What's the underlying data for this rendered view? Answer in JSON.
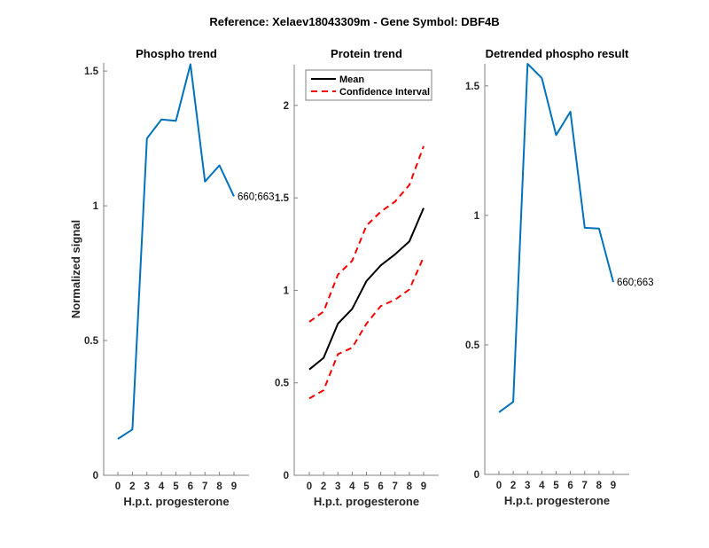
{
  "suptitle": "Reference:  Xelaev18043309m - Gene Symbol:  DBF4B",
  "chart_data": [
    {
      "type": "line",
      "title": "Phospho trend",
      "xlabel": "H.p.t. progesterone",
      "ylabel": "Normalized signal",
      "categories": [
        "0",
        "2",
        "3",
        "4",
        "5",
        "6",
        "7",
        "8",
        "9"
      ],
      "ylim": [
        0,
        1.53
      ],
      "yticks": [
        0,
        0.5,
        1,
        1.5
      ],
      "ytick_labels": [
        "0",
        "0.5",
        "1",
        "1.5"
      ],
      "series": [
        {
          "name": "660;663",
          "color": "#0072BD",
          "style": "solid",
          "values": [
            0.135,
            0.17,
            1.25,
            1.32,
            1.315,
            1.525,
            1.09,
            1.15,
            1.035
          ]
        }
      ],
      "annotation": "660;663",
      "legend": null
    },
    {
      "type": "line",
      "title": "Protein trend",
      "xlabel": "H.p.t. progesterone",
      "ylabel": "",
      "categories": [
        "0",
        "2",
        "3",
        "4",
        "5",
        "6",
        "7",
        "8",
        "9"
      ],
      "ylim": [
        0,
        2.22
      ],
      "yticks": [
        0,
        0.5,
        1,
        1.5,
        2
      ],
      "ytick_labels": [
        "0",
        "0.5",
        "1",
        "1.5",
        "2"
      ],
      "series": [
        {
          "name": "Mean",
          "color": "#000000",
          "style": "solid",
          "values": [
            0.572,
            0.635,
            0.82,
            0.9,
            1.05,
            1.135,
            1.195,
            1.265,
            1.445
          ]
        },
        {
          "name": "Confidence Interval",
          "color": "#FF0000",
          "style": "dashed",
          "values": [
            0.83,
            0.885,
            1.085,
            1.16,
            1.35,
            1.425,
            1.48,
            1.57,
            1.78
          ]
        },
        {
          "name": "Confidence Interval (lower)",
          "color": "#FF0000",
          "style": "dashed",
          "in_legend": false,
          "values": [
            0.415,
            0.46,
            0.655,
            0.69,
            0.82,
            0.915,
            0.95,
            1.005,
            1.18
          ]
        }
      ],
      "legend": {
        "position": "top",
        "entries": [
          "Mean",
          "Confidence Interval"
        ]
      }
    },
    {
      "type": "line",
      "title": "Detrended phospho result",
      "xlabel": "H.p.t. progesterone",
      "ylabel": "",
      "categories": [
        "0",
        "2",
        "3",
        "4",
        "5",
        "6",
        "7",
        "8",
        "9"
      ],
      "ylim": [
        0,
        1.585
      ],
      "yticks": [
        0,
        0.5,
        1,
        1.5
      ],
      "ytick_labels": [
        "0",
        "0.5",
        "1",
        "1.5"
      ],
      "series": [
        {
          "name": "660;663",
          "color": "#0072BD",
          "style": "solid",
          "values": [
            0.24,
            0.28,
            1.585,
            1.53,
            1.31,
            1.4,
            0.952,
            0.949,
            0.743
          ]
        }
      ],
      "annotation": "660;663",
      "legend": null
    }
  ]
}
